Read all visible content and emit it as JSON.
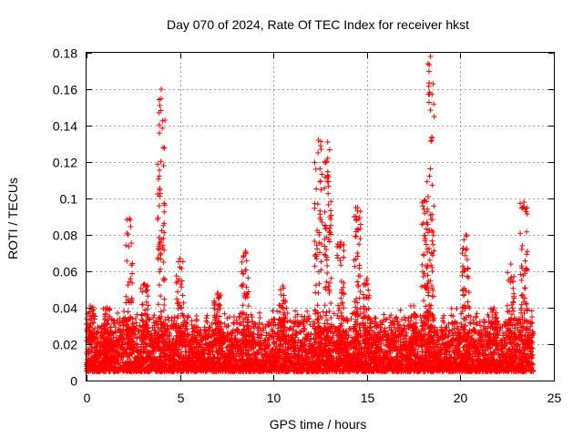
{
  "chart_data": {
    "type": "scatter",
    "title": "Day 070 of 2024, Rate Of TEC Index for receiver hkst",
    "xlabel": "GPS time / hours",
    "ylabel": "ROTI / TECUs",
    "xlim": [
      0,
      25
    ],
    "ylim": [
      0,
      0.18
    ],
    "xticks": [
      0,
      5,
      10,
      15,
      20,
      25
    ],
    "xtick_labels": [
      "0",
      "5",
      "10",
      "15",
      "20",
      "25"
    ],
    "yticks": [
      0,
      0.02,
      0.04,
      0.06,
      0.08,
      0.1,
      0.12,
      0.14,
      0.16,
      0.18
    ],
    "ytick_labels": [
      "0",
      "0.02",
      "0.04",
      "0.06",
      "0.08",
      "0.1",
      "0.12",
      "0.14",
      "0.16",
      "0.18"
    ],
    "grid": true,
    "marker": "+",
    "marker_color": "#ff0000",
    "series": [
      {
        "name": "ROTI",
        "description": "Dense band of points roughly 0.005-0.04 TECU/s throughout the day with spikes",
        "baseline_range": [
          0.005,
          0.04
        ],
        "x_range": [
          0,
          23.9
        ],
        "spikes": [
          {
            "x": 0.2,
            "peak": 0.041
          },
          {
            "x": 1.1,
            "peak": 0.04
          },
          {
            "x": 2.3,
            "peak": 0.089
          },
          {
            "x": 3.1,
            "peak": 0.053
          },
          {
            "x": 4.0,
            "peak": 0.16
          },
          {
            "x": 5.0,
            "peak": 0.067
          },
          {
            "x": 7.0,
            "peak": 0.048
          },
          {
            "x": 8.5,
            "peak": 0.071
          },
          {
            "x": 10.5,
            "peak": 0.052
          },
          {
            "x": 12.4,
            "peak": 0.132
          },
          {
            "x": 12.9,
            "peak": 0.131
          },
          {
            "x": 13.6,
            "peak": 0.076
          },
          {
            "x": 14.5,
            "peak": 0.095
          },
          {
            "x": 15.0,
            "peak": 0.056
          },
          {
            "x": 17.5,
            "peak": 0.041
          },
          {
            "x": 18.1,
            "peak": 0.099
          },
          {
            "x": 18.4,
            "peak": 0.178
          },
          {
            "x": 20.3,
            "peak": 0.08
          },
          {
            "x": 21.8,
            "peak": 0.04
          },
          {
            "x": 22.7,
            "peak": 0.064
          },
          {
            "x": 23.4,
            "peak": 0.098
          }
        ]
      }
    ]
  }
}
